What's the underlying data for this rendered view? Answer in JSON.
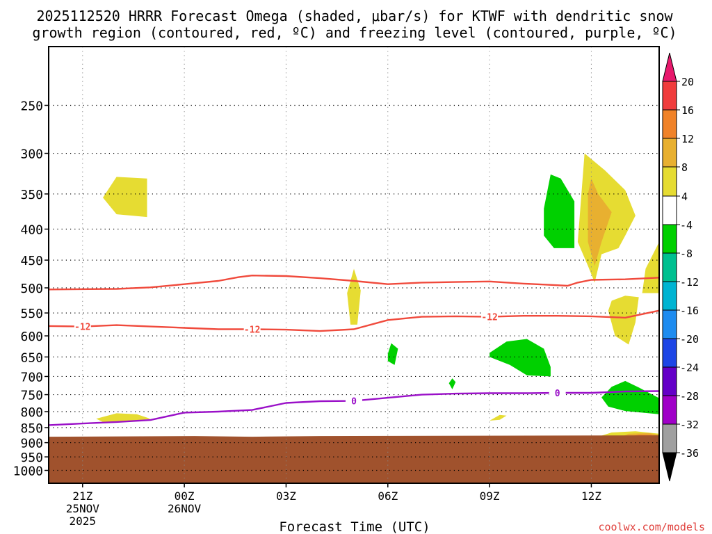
{
  "chart_data": {
    "type": "heatmap",
    "title_line1": "2025112520 HRRR Forecast Omega (shaded, μbar/s) for KTWF with dendritic snow",
    "title_line2": "growth region (contoured, red, ºC) and freezing level (contoured, purple, ºC)",
    "xlabel": "Forecast Time (UTC)",
    "ylabel": "",
    "credit": "coolwx.com/models",
    "x_unit": "hours since 2025-11-25 20Z",
    "xlim": [
      0,
      18
    ],
    "y_unit": "hPa",
    "ylim": [
      1050,
      200
    ],
    "y_ticks": [
      250,
      300,
      350,
      400,
      450,
      500,
      550,
      600,
      650,
      700,
      750,
      800,
      850,
      900,
      950,
      1000
    ],
    "x_ticks": [
      {
        "hour": 1,
        "label": "21Z",
        "sub1": "25NOV",
        "sub2": "2025"
      },
      {
        "hour": 4,
        "label": "00Z",
        "sub1": "26NOV",
        "sub2": ""
      },
      {
        "hour": 7,
        "label": "03Z",
        "sub1": "",
        "sub2": ""
      },
      {
        "hour": 10,
        "label": "06Z",
        "sub1": "",
        "sub2": ""
      },
      {
        "hour": 13,
        "label": "09Z",
        "sub1": "",
        "sub2": ""
      },
      {
        "hour": 16,
        "label": "12Z",
        "sub1": "",
        "sub2": ""
      }
    ],
    "grid": true,
    "colorbar": {
      "position": "right",
      "labels": [
        "20",
        "16",
        "12",
        "8",
        "4",
        "-4",
        "-8",
        "-12",
        "-16",
        "-20",
        "-24",
        "-28",
        "-32",
        "-36"
      ],
      "colors": [
        "#e8186c",
        "#f03c3c",
        "#f08228",
        "#e8b030",
        "#e6dc32",
        "#ffffff",
        "#00d000",
        "#00c090",
        "#00b4d2",
        "#1e8cf0",
        "#1e46e6",
        "#6400c8",
        "#a000c8",
        "#a0a0a0",
        "#000000"
      ]
    },
    "terrain": {
      "color": "#a0522d",
      "pressure": 880
    },
    "contours": [
      {
        "variable": "temperature",
        "level": -12,
        "color": "#f04a3c",
        "label": "-12",
        "points": [
          [
            0,
            578
          ],
          [
            1,
            579
          ],
          [
            2,
            576
          ],
          [
            3,
            579
          ],
          [
            4,
            582
          ],
          [
            5,
            585
          ],
          [
            6,
            585
          ],
          [
            7,
            586
          ],
          [
            8,
            589
          ],
          [
            9,
            585
          ],
          [
            10,
            565
          ],
          [
            11,
            558
          ],
          [
            12,
            557
          ],
          [
            13,
            558
          ],
          [
            14,
            556
          ],
          [
            15,
            556
          ],
          [
            16,
            557
          ],
          [
            17,
            560
          ],
          [
            18,
            545
          ]
        ],
        "label_hours": [
          1,
          6,
          13
        ]
      },
      {
        "variable": "temperature",
        "level": -16,
        "color": "#f04a3c",
        "label": "",
        "points": [
          [
            0,
            503
          ],
          [
            2,
            502
          ],
          [
            3,
            499
          ],
          [
            4,
            493
          ],
          [
            5,
            487
          ],
          [
            5.6,
            480
          ],
          [
            6,
            477
          ],
          [
            7,
            478
          ],
          [
            8,
            482
          ],
          [
            9,
            487
          ],
          [
            10,
            493
          ],
          [
            11,
            490
          ],
          [
            12,
            489
          ],
          [
            13,
            488
          ],
          [
            14,
            492
          ],
          [
            15,
            495
          ],
          [
            15.3,
            496
          ],
          [
            15.6,
            490
          ],
          [
            16,
            485
          ],
          [
            17,
            484
          ],
          [
            18,
            481
          ]
        ],
        "label_hours": []
      },
      {
        "variable": "freezing_level",
        "level": 0,
        "color": "#9a10c8",
        "label": "0",
        "points": [
          [
            0,
            842
          ],
          [
            1,
            837
          ],
          [
            2,
            832
          ],
          [
            3,
            826
          ],
          [
            4,
            803
          ],
          [
            5,
            800
          ],
          [
            6,
            795
          ],
          [
            7,
            774
          ],
          [
            8,
            769
          ],
          [
            9,
            768
          ],
          [
            10,
            759
          ],
          [
            11,
            750
          ],
          [
            12,
            747
          ],
          [
            13,
            746
          ],
          [
            14,
            746
          ],
          [
            15,
            745
          ],
          [
            16,
            745
          ],
          [
            17,
            741
          ],
          [
            18,
            740
          ]
        ],
        "label_hours": [
          9,
          15
        ]
      }
    ],
    "omega_regions": [
      {
        "name": "positive-4",
        "color": "#e6dc32",
        "points": [
          [
            1.6,
            355
          ],
          [
            2.0,
            328
          ],
          [
            2.9,
            330
          ],
          [
            2.9,
            382
          ],
          [
            2.0,
            378
          ]
        ]
      },
      {
        "name": "positive-4",
        "color": "#e6dc32",
        "points": [
          [
            1.4,
            822
          ],
          [
            2.0,
            805
          ],
          [
            2.6,
            808
          ],
          [
            3.0,
            822
          ],
          [
            2.5,
            830
          ],
          [
            1.6,
            832
          ]
        ]
      },
      {
        "name": "positive-4",
        "color": "#e6dc32",
        "points": [
          [
            8.9,
            575
          ],
          [
            8.8,
            510
          ],
          [
            9.0,
            465
          ],
          [
            9.2,
            505
          ],
          [
            9.1,
            575
          ]
        ]
      },
      {
        "name": "positive-4",
        "color": "#e6dc32",
        "points": [
          [
            13.0,
            828
          ],
          [
            13.3,
            810
          ],
          [
            13.5,
            812
          ],
          [
            13.3,
            825
          ]
        ]
      },
      {
        "name": "positive-4",
        "color": "#e6dc32",
        "points": [
          [
            15.6,
            420
          ],
          [
            15.8,
            300
          ],
          [
            16.4,
            320
          ],
          [
            17.0,
            345
          ],
          [
            17.3,
            380
          ],
          [
            17.0,
            410
          ],
          [
            16.8,
            430
          ],
          [
            16.3,
            440
          ],
          [
            16.1,
            490
          ],
          [
            15.9,
            460
          ]
        ]
      },
      {
        "name": "positive-4",
        "color": "#e6dc32",
        "points": [
          [
            16.5,
            545
          ],
          [
            16.6,
            525
          ],
          [
            17.0,
            515
          ],
          [
            17.4,
            518
          ],
          [
            17.3,
            570
          ],
          [
            17.1,
            620
          ],
          [
            16.7,
            600
          ]
        ]
      },
      {
        "name": "positive-4",
        "color": "#e6dc32",
        "points": [
          [
            17.5,
            510
          ],
          [
            17.6,
            465
          ],
          [
            18.0,
            420
          ],
          [
            18.0,
            510
          ]
        ]
      },
      {
        "name": "positive-8",
        "color": "#e8b030",
        "points": [
          [
            15.9,
            350
          ],
          [
            16.0,
            330
          ],
          [
            16.2,
            350
          ],
          [
            16.6,
            375
          ],
          [
            16.3,
            420
          ],
          [
            16.1,
            460
          ],
          [
            15.9,
            420
          ]
        ]
      },
      {
        "name": "negative-4",
        "color": "#00d000",
        "points": [
          [
            14.6,
            370
          ],
          [
            14.8,
            325
          ],
          [
            15.1,
            330
          ],
          [
            15.5,
            360
          ],
          [
            15.5,
            430
          ],
          [
            14.9,
            430
          ],
          [
            14.6,
            410
          ]
        ]
      },
      {
        "name": "negative-4",
        "color": "#00d000",
        "points": [
          [
            10.0,
            642
          ],
          [
            10.1,
            617
          ],
          [
            10.3,
            630
          ],
          [
            10.2,
            670
          ],
          [
            10.0,
            660
          ]
        ]
      },
      {
        "name": "negative-4",
        "color": "#00d000",
        "points": [
          [
            13.0,
            640
          ],
          [
            13.5,
            613
          ],
          [
            14.1,
            607
          ],
          [
            14.6,
            630
          ],
          [
            14.8,
            675
          ],
          [
            14.8,
            700
          ],
          [
            14.1,
            697
          ],
          [
            13.6,
            670
          ],
          [
            13.0,
            650
          ]
        ]
      },
      {
        "name": "negative-4",
        "color": "#00d000",
        "points": [
          [
            11.8,
            718
          ],
          [
            11.9,
            705
          ],
          [
            12.0,
            715
          ],
          [
            11.9,
            735
          ]
        ]
      },
      {
        "name": "negative-4",
        "color": "#00d000",
        "points": [
          [
            16.3,
            758
          ],
          [
            16.6,
            728
          ],
          [
            17.0,
            712
          ],
          [
            17.4,
            730
          ],
          [
            18.0,
            760
          ],
          [
            18.0,
            808
          ],
          [
            17.0,
            798
          ],
          [
            16.5,
            785
          ]
        ]
      },
      {
        "name": "positive-4",
        "color": "#e6dc32",
        "points": [
          [
            16.2,
            880
          ],
          [
            16.6,
            866
          ],
          [
            17.3,
            862
          ],
          [
            18.0,
            870
          ],
          [
            18.0,
            880
          ]
        ]
      },
      {
        "name": "positive-8",
        "color": "#e8b030",
        "points": [
          [
            16.9,
            880
          ],
          [
            17.1,
            870
          ],
          [
            17.7,
            868
          ],
          [
            18.0,
            874
          ],
          [
            18.0,
            880
          ]
        ]
      },
      {
        "name": "positive-12",
        "color": "#f08228",
        "points": [
          [
            17.1,
            880
          ],
          [
            17.4,
            873
          ],
          [
            17.8,
            874
          ],
          [
            17.7,
            880
          ]
        ]
      },
      {
        "name": "positive-16",
        "color": "#f03c3c",
        "points": [
          [
            17.3,
            880
          ],
          [
            17.4,
            876
          ],
          [
            17.6,
            877
          ],
          [
            17.5,
            880
          ]
        ]
      }
    ]
  }
}
